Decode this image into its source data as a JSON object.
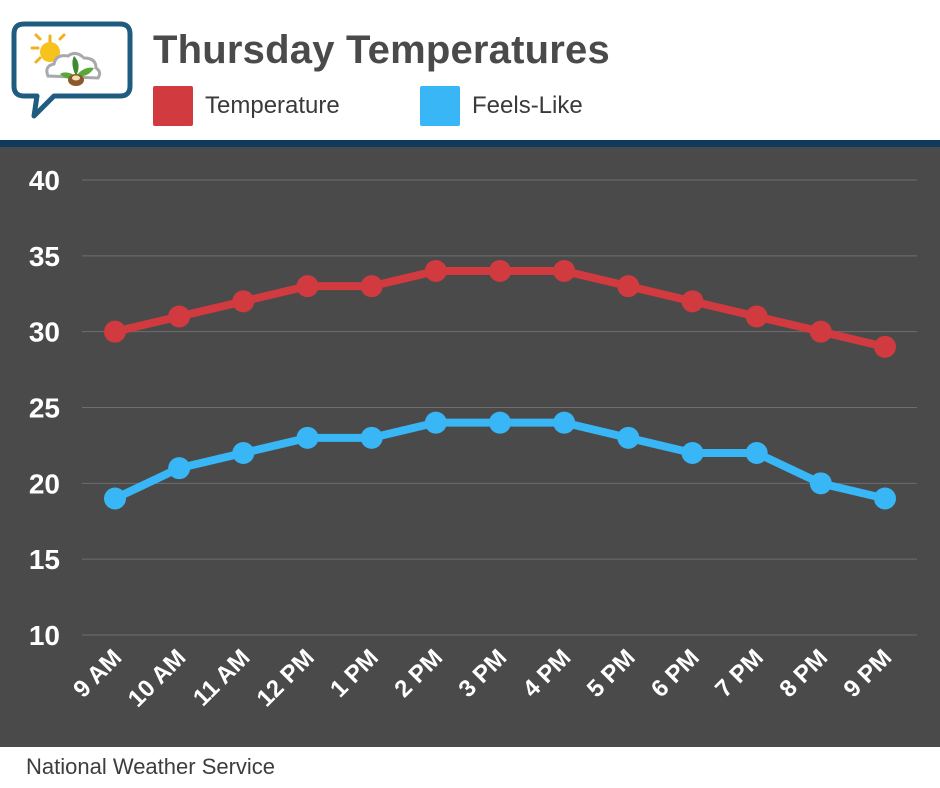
{
  "header": {
    "title": "Thursday Temperatures",
    "logo_icon": "sun-cloud-leaf-logo-icon"
  },
  "legend": [
    {
      "label": "Temperature",
      "color": "#d13a3f"
    },
    {
      "label": "Feels-Like",
      "color": "#38b6f6"
    }
  ],
  "footer": {
    "source": "National Weather Service"
  },
  "chart_data": {
    "type": "line",
    "title": "Thursday Temperatures",
    "xlabel": "",
    "ylabel": "",
    "categories": [
      "9 AM",
      "10 AM",
      "11 AM",
      "12 PM",
      "1 PM",
      "2 PM",
      "3 PM",
      "4 PM",
      "5 PM",
      "6 PM",
      "7 PM",
      "8 PM",
      "9 PM"
    ],
    "series": [
      {
        "name": "Temperature",
        "color": "#d13a3f",
        "values": [
          30,
          31,
          32,
          33,
          33,
          34,
          34,
          34,
          33,
          32,
          31,
          30,
          29
        ]
      },
      {
        "name": "Feels-Like",
        "color": "#38b6f6",
        "values": [
          19,
          21,
          22,
          23,
          23,
          24,
          24,
          24,
          23,
          22,
          22,
          20,
          19
        ]
      }
    ],
    "ylim": [
      10,
      40
    ],
    "yticks": [
      10,
      15,
      20,
      25,
      30,
      35,
      40
    ],
    "grid": true,
    "legend_position": "top"
  }
}
